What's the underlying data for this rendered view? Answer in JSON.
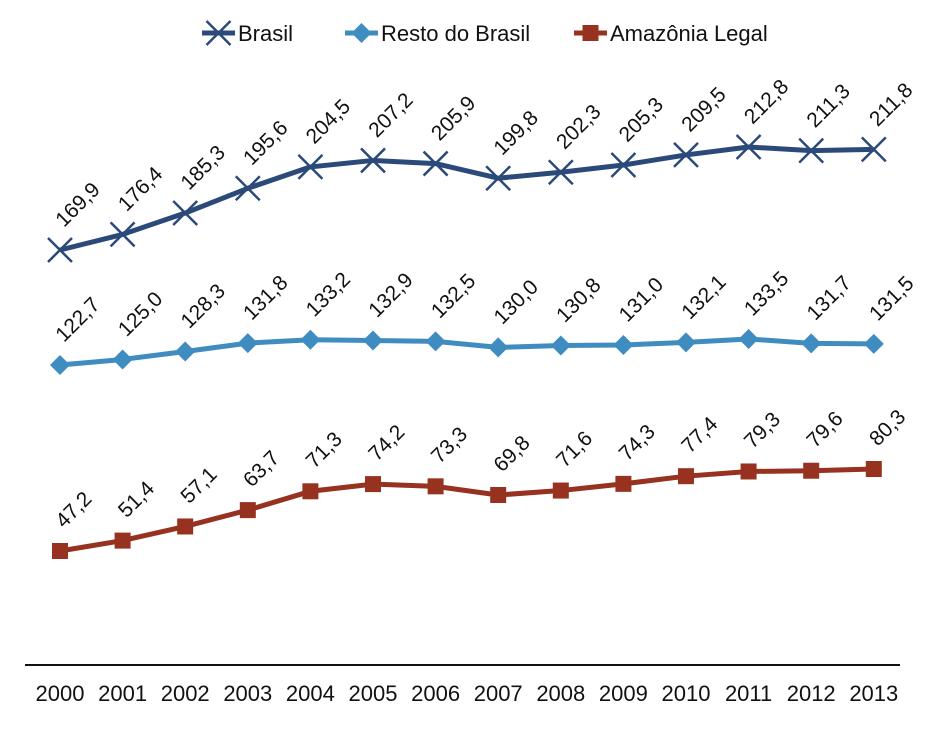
{
  "chart_data": {
    "type": "line",
    "title": "",
    "xlabel": "",
    "ylabel": "",
    "x": [
      "2000",
      "2001",
      "2002",
      "2003",
      "2004",
      "2005",
      "2006",
      "2007",
      "2008",
      "2009",
      "2010",
      "2011",
      "2012",
      "2013"
    ],
    "ylim": [
      0,
      225
    ],
    "grid": false,
    "legend_position": "top-center",
    "series": [
      {
        "name": "Brasil",
        "color": "#2b4a7a",
        "marker": "x",
        "values": [
          169.9,
          176.4,
          185.3,
          195.6,
          204.5,
          207.2,
          205.9,
          199.8,
          202.3,
          205.3,
          209.5,
          212.8,
          211.3,
          211.8
        ],
        "labels": [
          "169,9",
          "176,4",
          "185,3",
          "195,6",
          "204,5",
          "207,2",
          "205,9",
          "199,8",
          "202,3",
          "205,3",
          "209,5",
          "212,8",
          "211,3",
          "211,8"
        ]
      },
      {
        "name": "Resto do Brasil",
        "color": "#3f8dc0",
        "marker": "diamond",
        "values": [
          122.7,
          125.0,
          128.3,
          131.8,
          133.2,
          132.9,
          132.5,
          130.0,
          130.8,
          131.0,
          132.1,
          133.5,
          131.7,
          131.5
        ],
        "labels": [
          "122,7",
          "125,0",
          "128,3",
          "131,8",
          "133,2",
          "132,9",
          "132,5",
          "130,0",
          "130,8",
          "131,0",
          "132,1",
          "133,5",
          "131,7",
          "131,5"
        ]
      },
      {
        "name": "Amazônia Legal",
        "color": "#96321f",
        "marker": "square",
        "values": [
          47.2,
          51.4,
          57.1,
          63.7,
          71.3,
          74.2,
          73.3,
          69.8,
          71.6,
          74.3,
          77.4,
          79.3,
          79.6,
          80.3
        ],
        "labels": [
          "47,2",
          "51,4",
          "57,1",
          "63,7",
          "71,3",
          "74,2",
          "73,3",
          "69,8",
          "71,6",
          "74,3",
          "77,4",
          "79,3",
          "79,6",
          "80,3"
        ]
      }
    ]
  }
}
